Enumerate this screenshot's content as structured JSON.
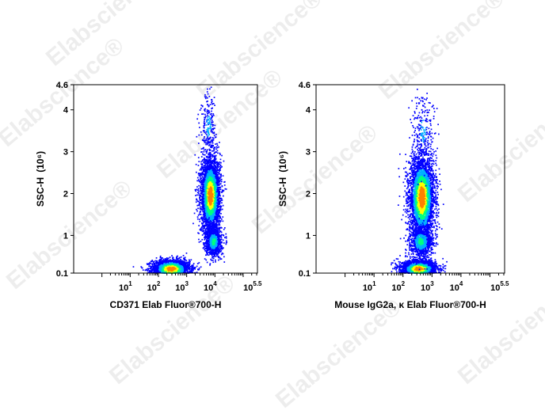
{
  "watermark": "Elabscience®",
  "chart_data": [
    {
      "type": "scatter",
      "subtype": "flow-cytometry-density",
      "xlabel": "CD371 Elab Fluor®700-H",
      "ylabel": "SSC-H",
      "ylabel_unit": "(10⁶)",
      "x_scale": "log",
      "xlim": [
        0.1,
        320000
      ],
      "ylim": [
        0.1,
        4.6
      ],
      "x_ticks": [
        {
          "base": "10",
          "exp": "1"
        },
        {
          "base": "10",
          "exp": "2"
        },
        {
          "base": "10",
          "exp": "3"
        },
        {
          "base": "10",
          "exp": "4"
        },
        {
          "base": "10",
          "exp": "5.5"
        }
      ],
      "y_ticks": [
        "0.1",
        "1",
        "2",
        "3",
        "4",
        "4.6"
      ],
      "colormap": [
        "#0000ff",
        "#00b0ff",
        "#00ff80",
        "#ffff00",
        "#ff8000",
        "#ff0000"
      ],
      "populations": [
        {
          "x_center": 280,
          "y_center": 0.2,
          "x_spread_log10": 0.33,
          "y_spread": 0.11,
          "n": 2600,
          "peak": "red"
        },
        {
          "x_center": 7000,
          "y_center": 1.95,
          "x_spread_log10": 0.17,
          "y_spread": 0.45,
          "n": 3600,
          "peak": "red"
        },
        {
          "x_center": 9000,
          "y_center": 0.85,
          "x_spread_log10": 0.14,
          "y_spread": 0.17,
          "n": 900,
          "peak": "green"
        },
        {
          "x_center": 6000,
          "y_center": 3.6,
          "x_spread_log10": 0.15,
          "y_spread": 0.5,
          "n": 250,
          "peak": "blue"
        }
      ]
    },
    {
      "type": "scatter",
      "subtype": "flow-cytometry-density",
      "xlabel": "Mouse IgG2a, κ Elab Fluor®700-H",
      "ylabel": "SSC-H",
      "ylabel_unit": "(10⁶)",
      "x_scale": "log",
      "xlim": [
        0.1,
        320000
      ],
      "ylim": [
        0.1,
        4.6
      ],
      "x_ticks": [
        {
          "base": "10",
          "exp": "1"
        },
        {
          "base": "10",
          "exp": "2"
        },
        {
          "base": "10",
          "exp": "3"
        },
        {
          "base": "10",
          "exp": "4"
        },
        {
          "base": "10",
          "exp": "5.5"
        }
      ],
      "y_ticks": [
        "0.1",
        "1",
        "2",
        "3",
        "4",
        "4.6"
      ],
      "colormap": [
        "#0000ff",
        "#00b0ff",
        "#00ff80",
        "#ffff00",
        "#ff8000",
        "#ff0000"
      ],
      "populations": [
        {
          "x_center": 350,
          "y_center": 0.2,
          "x_spread_log10": 0.3,
          "y_spread": 0.1,
          "n": 2700,
          "peak": "red"
        },
        {
          "x_center": 450,
          "y_center": 1.9,
          "x_spread_log10": 0.22,
          "y_spread": 0.5,
          "n": 3700,
          "peak": "red"
        },
        {
          "x_center": 420,
          "y_center": 0.85,
          "x_spread_log10": 0.2,
          "y_spread": 0.18,
          "n": 900,
          "peak": "green"
        },
        {
          "x_center": 500,
          "y_center": 3.5,
          "x_spread_log10": 0.2,
          "y_spread": 0.5,
          "n": 250,
          "peak": "blue"
        }
      ]
    }
  ]
}
